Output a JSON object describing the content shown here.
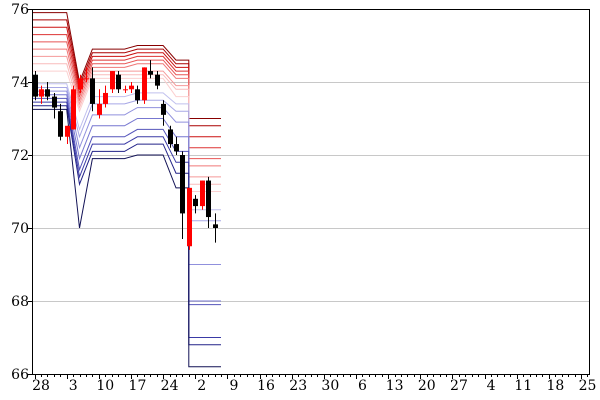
{
  "chart_data": {
    "type": "candlestick",
    "title": "",
    "xlabel": "",
    "ylabel": "",
    "ylim": [
      66,
      76
    ],
    "y_ticks": [
      "66",
      "68",
      "70",
      "72",
      "74",
      "76"
    ],
    "x_tick_labels": [
      "28",
      "3",
      "10",
      "17",
      "24",
      "2",
      "9",
      "16",
      "23",
      "30",
      "6",
      "13",
      "20",
      "27",
      "4",
      "11",
      "18",
      "25"
    ],
    "grid": true,
    "colors": {
      "up": "#ff0000",
      "down": "#000000",
      "grid": "#c8c8c8"
    },
    "candles": [
      {
        "d": 0,
        "o": 74.2,
        "h": 74.3,
        "l": 73.5,
        "c": 73.6
      },
      {
        "d": 1,
        "o": 73.6,
        "h": 73.9,
        "l": 73.4,
        "c": 73.8
      },
      {
        "d": 2,
        "o": 73.8,
        "h": 74.0,
        "l": 73.5,
        "c": 73.6
      },
      {
        "d": 3,
        "o": 73.6,
        "h": 73.7,
        "l": 73.0,
        "c": 73.3
      },
      {
        "d": 4,
        "o": 73.2,
        "h": 73.4,
        "l": 72.4,
        "c": 72.5
      },
      {
        "d": 5,
        "o": 72.5,
        "h": 72.8,
        "l": 72.3,
        "c": 72.8
      },
      {
        "d": 6,
        "o": 72.7,
        "h": 73.9,
        "l": 72.7,
        "c": 73.8
      },
      {
        "d": 7,
        "o": 73.8,
        "h": 74.2,
        "l": 73.7,
        "c": 74.1
      },
      {
        "d": 8,
        "o": 74.1,
        "h": 74.4,
        "l": 74.0,
        "c": 74.1
      },
      {
        "d": 9,
        "o": 74.1,
        "h": 74.4,
        "l": 73.2,
        "c": 73.4
      },
      {
        "d": 10,
        "o": 73.1,
        "h": 73.8,
        "l": 73.0,
        "c": 73.4
      },
      {
        "d": 11,
        "o": 73.4,
        "h": 73.9,
        "l": 73.3,
        "c": 73.7
      },
      {
        "d": 12,
        "o": 73.8,
        "h": 74.3,
        "l": 73.7,
        "c": 74.3
      },
      {
        "d": 13,
        "o": 74.2,
        "h": 74.3,
        "l": 73.7,
        "c": 73.8
      },
      {
        "d": 14,
        "o": 73.8,
        "h": 73.9,
        "l": 73.7,
        "c": 73.8
      },
      {
        "d": 15,
        "o": 73.8,
        "h": 74.0,
        "l": 73.7,
        "c": 73.9
      },
      {
        "d": 16,
        "o": 73.8,
        "h": 73.9,
        "l": 73.4,
        "c": 73.5
      },
      {
        "d": 17,
        "o": 73.5,
        "h": 74.4,
        "l": 73.4,
        "c": 74.4
      },
      {
        "d": 18,
        "o": 74.3,
        "h": 74.6,
        "l": 74.1,
        "c": 74.2
      },
      {
        "d": 19,
        "o": 74.2,
        "h": 74.3,
        "l": 73.8,
        "c": 73.9
      },
      {
        "d": 20,
        "o": 73.4,
        "h": 73.5,
        "l": 72.8,
        "c": 73.1
      },
      {
        "d": 21,
        "o": 72.7,
        "h": 72.8,
        "l": 72.2,
        "c": 72.3
      },
      {
        "d": 22,
        "o": 72.3,
        "h": 72.5,
        "l": 72.0,
        "c": 72.1
      },
      {
        "d": 23,
        "o": 72.0,
        "h": 72.1,
        "l": 69.7,
        "c": 70.4
      },
      {
        "d": 24,
        "o": 69.5,
        "h": 71.1,
        "l": 69.4,
        "c": 71.1
      },
      {
        "d": 25,
        "o": 70.8,
        "h": 70.9,
        "l": 70.4,
        "c": 70.6
      },
      {
        "d": 26,
        "o": 70.6,
        "h": 71.3,
        "l": 70.5,
        "c": 71.3
      },
      {
        "d": 27,
        "o": 71.3,
        "h": 71.4,
        "l": 70.0,
        "c": 70.3
      },
      {
        "d": 28,
        "o": 70.1,
        "h": 70.4,
        "l": 69.6,
        "c": 70.0
      }
    ],
    "bands": [
      {
        "color": "#880000",
        "points": [
          [
            -1,
            75.9
          ],
          [
            5,
            75.9
          ],
          [
            7,
            74.0
          ],
          [
            9,
            74.9
          ],
          [
            14,
            74.9
          ],
          [
            16,
            75.0
          ],
          [
            20,
            75.0
          ],
          [
            22,
            74.6
          ],
          [
            24,
            74.6
          ],
          [
            24,
            73.0
          ],
          [
            29,
            73.0
          ]
        ]
      },
      {
        "color": "#aa0000",
        "points": [
          [
            -1,
            75.7
          ],
          [
            5,
            75.7
          ],
          [
            7,
            73.9
          ],
          [
            9,
            74.8
          ],
          [
            14,
            74.8
          ],
          [
            16,
            74.9
          ],
          [
            20,
            74.9
          ],
          [
            22,
            74.5
          ],
          [
            24,
            74.5
          ],
          [
            24,
            72.8
          ],
          [
            29,
            72.8
          ]
        ]
      },
      {
        "color": "#cc1111",
        "points": [
          [
            -1,
            75.5
          ],
          [
            5,
            75.5
          ],
          [
            7,
            73.8
          ],
          [
            9,
            74.7
          ],
          [
            14,
            74.7
          ],
          [
            16,
            74.8
          ],
          [
            20,
            74.8
          ],
          [
            22,
            74.4
          ],
          [
            24,
            74.4
          ],
          [
            24,
            72.5
          ],
          [
            29,
            72.5
          ]
        ]
      },
      {
        "color": "#dd3333",
        "points": [
          [
            -1,
            75.3
          ],
          [
            5,
            75.3
          ],
          [
            7,
            73.7
          ],
          [
            9,
            74.6
          ],
          [
            14,
            74.6
          ],
          [
            16,
            74.7
          ],
          [
            20,
            74.7
          ],
          [
            22,
            74.3
          ],
          [
            24,
            74.3
          ],
          [
            24,
            72.2
          ],
          [
            29,
            72.2
          ]
        ]
      },
      {
        "color": "#e85555",
        "points": [
          [
            -1,
            75.1
          ],
          [
            5,
            75.1
          ],
          [
            7,
            73.6
          ],
          [
            9,
            74.5
          ],
          [
            14,
            74.5
          ],
          [
            16,
            74.6
          ],
          [
            20,
            74.6
          ],
          [
            22,
            74.2
          ],
          [
            24,
            74.2
          ],
          [
            24,
            71.9
          ],
          [
            29,
            71.9
          ]
        ]
      },
      {
        "color": "#f07777",
        "points": [
          [
            -1,
            74.9
          ],
          [
            5,
            74.9
          ],
          [
            7,
            73.5
          ],
          [
            9,
            74.4
          ],
          [
            14,
            74.4
          ],
          [
            16,
            74.5
          ],
          [
            20,
            74.5
          ],
          [
            22,
            74.1
          ],
          [
            24,
            74.1
          ],
          [
            24,
            71.7
          ],
          [
            29,
            71.7
          ]
        ]
      },
      {
        "color": "#f59999",
        "points": [
          [
            -1,
            74.7
          ],
          [
            5,
            74.7
          ],
          [
            7,
            73.4
          ],
          [
            9,
            74.3
          ],
          [
            14,
            74.3
          ],
          [
            16,
            74.3
          ],
          [
            20,
            74.3
          ],
          [
            22,
            73.9
          ],
          [
            24,
            73.9
          ],
          [
            24,
            71.4
          ],
          [
            29,
            71.4
          ]
        ]
      },
      {
        "color": "#f9bbbb",
        "points": [
          [
            -1,
            74.5
          ],
          [
            5,
            74.5
          ],
          [
            7,
            73.3
          ],
          [
            9,
            74.2
          ],
          [
            14,
            74.2
          ],
          [
            16,
            74.2
          ],
          [
            20,
            74.2
          ],
          [
            22,
            73.8
          ],
          [
            24,
            73.8
          ],
          [
            24,
            71.2
          ],
          [
            29,
            71.2
          ]
        ]
      },
      {
        "color": "#fbd0d0",
        "points": [
          [
            -1,
            74.3
          ],
          [
            5,
            74.3
          ],
          [
            7,
            73.2
          ],
          [
            9,
            74.1
          ],
          [
            14,
            74.1
          ],
          [
            16,
            74.1
          ],
          [
            20,
            74.1
          ],
          [
            22,
            73.6
          ],
          [
            24,
            73.6
          ],
          [
            24,
            71.0
          ],
          [
            29,
            71.0
          ]
        ]
      },
      {
        "color": "#c0c0ee",
        "points": [
          [
            -1,
            73.95
          ],
          [
            5,
            73.95
          ],
          [
            7,
            72.7
          ],
          [
            9,
            73.6
          ],
          [
            14,
            73.6
          ],
          [
            16,
            73.7
          ],
          [
            20,
            73.7
          ],
          [
            22,
            73.4
          ],
          [
            24,
            73.4
          ],
          [
            24,
            70.5
          ],
          [
            29,
            70.5
          ]
        ]
      },
      {
        "color": "#a8a8e6",
        "points": [
          [
            -1,
            73.85
          ],
          [
            5,
            73.85
          ],
          [
            7,
            72.5
          ],
          [
            9,
            73.4
          ],
          [
            14,
            73.4
          ],
          [
            16,
            73.5
          ],
          [
            20,
            73.5
          ],
          [
            22,
            73.2
          ],
          [
            24,
            73.2
          ],
          [
            24,
            70.2
          ],
          [
            29,
            70.2
          ]
        ]
      },
      {
        "color": "#9090dd",
        "points": [
          [
            -1,
            73.75
          ],
          [
            5,
            73.75
          ],
          [
            7,
            72.2
          ],
          [
            9,
            73.1
          ],
          [
            14,
            73.1
          ],
          [
            16,
            73.3
          ],
          [
            20,
            73.3
          ],
          [
            22,
            72.9
          ],
          [
            24,
            72.9
          ],
          [
            24,
            69.0
          ],
          [
            29,
            69.0
          ]
        ]
      },
      {
        "color": "#7777d0",
        "points": [
          [
            -1,
            73.65
          ],
          [
            5,
            73.65
          ],
          [
            7,
            71.9
          ],
          [
            9,
            72.8
          ],
          [
            14,
            72.8
          ],
          [
            16,
            73.0
          ],
          [
            20,
            73.0
          ],
          [
            22,
            72.5
          ],
          [
            24,
            72.5
          ],
          [
            24,
            68.0
          ],
          [
            29,
            68.0
          ]
        ]
      },
      {
        "color": "#5555bb",
        "points": [
          [
            -1,
            73.55
          ],
          [
            5,
            73.55
          ],
          [
            7,
            71.6
          ],
          [
            9,
            72.5
          ],
          [
            14,
            72.5
          ],
          [
            16,
            72.7
          ],
          [
            20,
            72.7
          ],
          [
            22,
            72.1
          ],
          [
            24,
            72.1
          ],
          [
            24,
            67.9
          ],
          [
            29,
            67.9
          ]
        ]
      },
      {
        "color": "#3a3aa6",
        "points": [
          [
            -1,
            73.45
          ],
          [
            5,
            73.45
          ],
          [
            7,
            71.4
          ],
          [
            9,
            72.3
          ],
          [
            14,
            72.3
          ],
          [
            16,
            72.5
          ],
          [
            20,
            72.5
          ],
          [
            22,
            71.8
          ],
          [
            24,
            71.8
          ],
          [
            24,
            67.0
          ],
          [
            29,
            67.0
          ]
        ]
      },
      {
        "color": "#222288",
        "points": [
          [
            -1,
            73.35
          ],
          [
            5,
            73.35
          ],
          [
            7,
            71.2
          ],
          [
            9,
            72.1
          ],
          [
            14,
            72.1
          ],
          [
            16,
            72.3
          ],
          [
            20,
            72.3
          ],
          [
            22,
            71.5
          ],
          [
            24,
            71.5
          ],
          [
            24,
            66.8
          ],
          [
            29,
            66.8
          ]
        ]
      },
      {
        "color": "#111155",
        "points": [
          [
            -1,
            73.25
          ],
          [
            5,
            73.25
          ],
          [
            7,
            70.0
          ],
          [
            9,
            71.9
          ],
          [
            14,
            71.9
          ],
          [
            16,
            72.0
          ],
          [
            20,
            72.0
          ],
          [
            22,
            71.1
          ],
          [
            24,
            71.1
          ],
          [
            24,
            66.2
          ],
          [
            29,
            66.2
          ]
        ]
      }
    ]
  }
}
